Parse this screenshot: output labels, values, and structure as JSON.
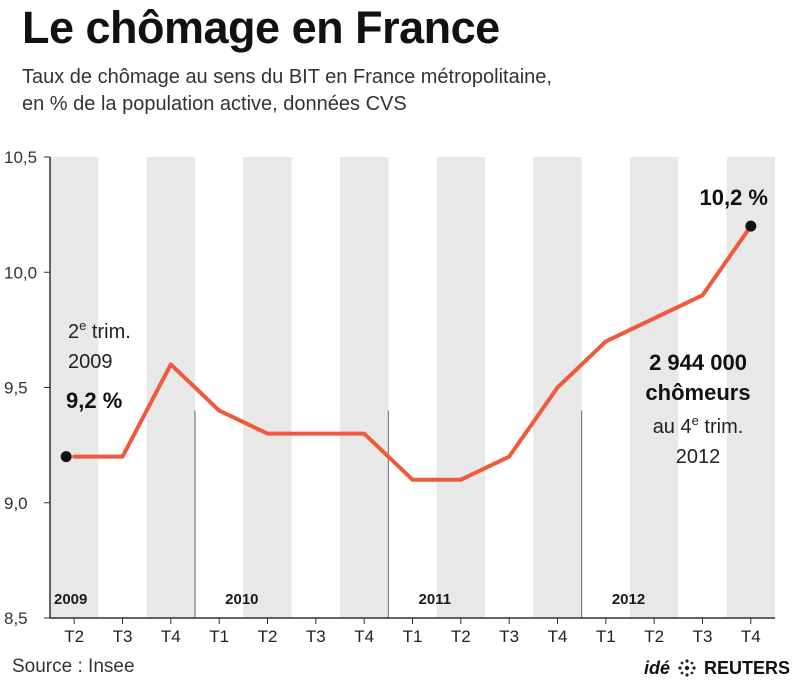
{
  "header": {
    "title": "Le chômage en France",
    "subtitle_line1": "Taux de chômage au sens du BIT en France métropolitaine,",
    "subtitle_line2": "en % de la population active, données CVS"
  },
  "footer": {
    "source": "Source : Insee",
    "credit_ide": "idé",
    "credit_reuters": "REUTERS"
  },
  "colors": {
    "line": "#f05a3c",
    "band": "#e8e8e8",
    "axis": "#333333",
    "text": "#1a1a1a"
  },
  "chart_data": {
    "type": "line",
    "title": "Le chômage en France",
    "xlabel": "",
    "ylabel": "",
    "categories": [
      "T2",
      "T3",
      "T4",
      "T1",
      "T2",
      "T3",
      "T4",
      "T1",
      "T2",
      "T3",
      "T4",
      "T1",
      "T2",
      "T3",
      "T4"
    ],
    "years": [
      {
        "label": "2009",
        "index": 0
      },
      {
        "label": "2010",
        "index": 3
      },
      {
        "label": "2011",
        "index": 7
      },
      {
        "label": "2012",
        "index": 11
      }
    ],
    "series": [
      {
        "name": "Taux de chômage (%)",
        "values": [
          9.2,
          9.2,
          9.6,
          9.4,
          9.3,
          9.3,
          9.3,
          9.1,
          9.1,
          9.2,
          9.5,
          9.7,
          9.8,
          9.9,
          10.2
        ]
      }
    ],
    "ylim": [
      8.5,
      10.5
    ],
    "yticks": [
      8.5,
      9.0,
      9.5,
      10.0,
      10.5
    ],
    "ytick_labels": [
      "8,5",
      "9,0",
      "9,5",
      "10,0",
      "10,5"
    ],
    "annotations": {
      "start_line1": "2",
      "start_sup": "e",
      "start_line1_rest": " trim.",
      "start_line2": "2009",
      "start_value": "9,2 %",
      "end_value": "10,2 %",
      "end_count": "2 944 000",
      "end_count_label": "chômeurs",
      "end_period_prefix": "au 4",
      "end_period_sup": "e",
      "end_period_rest": " trim.",
      "end_period_year": "2012"
    }
  }
}
